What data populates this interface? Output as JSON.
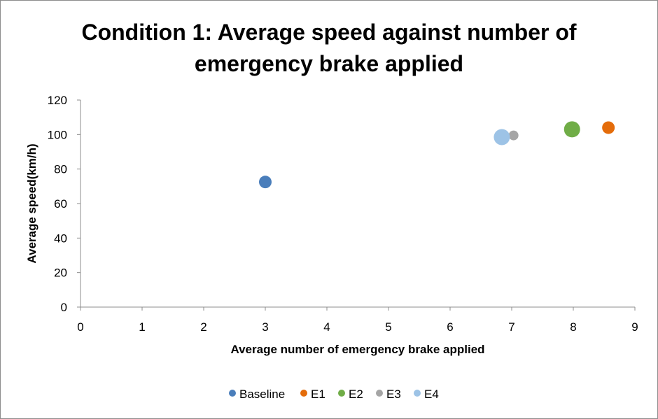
{
  "chart_data": {
    "type": "bubble-scatter",
    "title_lines": [
      "Condition 1: Average speed against number of",
      "emergency brake applied"
    ],
    "xlabel": "Average number of emergency brake applied",
    "ylabel": "Average speed(km/h)",
    "xlim": [
      0,
      9
    ],
    "ylim": [
      0,
      120
    ],
    "x_ticks": [
      0,
      1,
      2,
      3,
      4,
      5,
      6,
      7,
      8,
      9
    ],
    "y_ticks": [
      0,
      20,
      40,
      60,
      80,
      100,
      120
    ],
    "grid": false,
    "legend_position": "bottom",
    "series": [
      {
        "name": "Baseline",
        "x": 3.0,
        "y": 72.5,
        "color": "#4a7ebb",
        "size": "medium"
      },
      {
        "name": "E1",
        "x": 8.57,
        "y": 104.0,
        "color": "#e46c0a",
        "size": "medium"
      },
      {
        "name": "E2",
        "x": 7.98,
        "y": 103.0,
        "color": "#70ad47",
        "size": "large"
      },
      {
        "name": "E3",
        "x": 7.03,
        "y": 99.5,
        "color": "#a5a5a5",
        "size": "small"
      },
      {
        "name": "E4",
        "x": 6.84,
        "y": 98.5,
        "color": "#9dc3e6",
        "size": "large"
      }
    ]
  }
}
